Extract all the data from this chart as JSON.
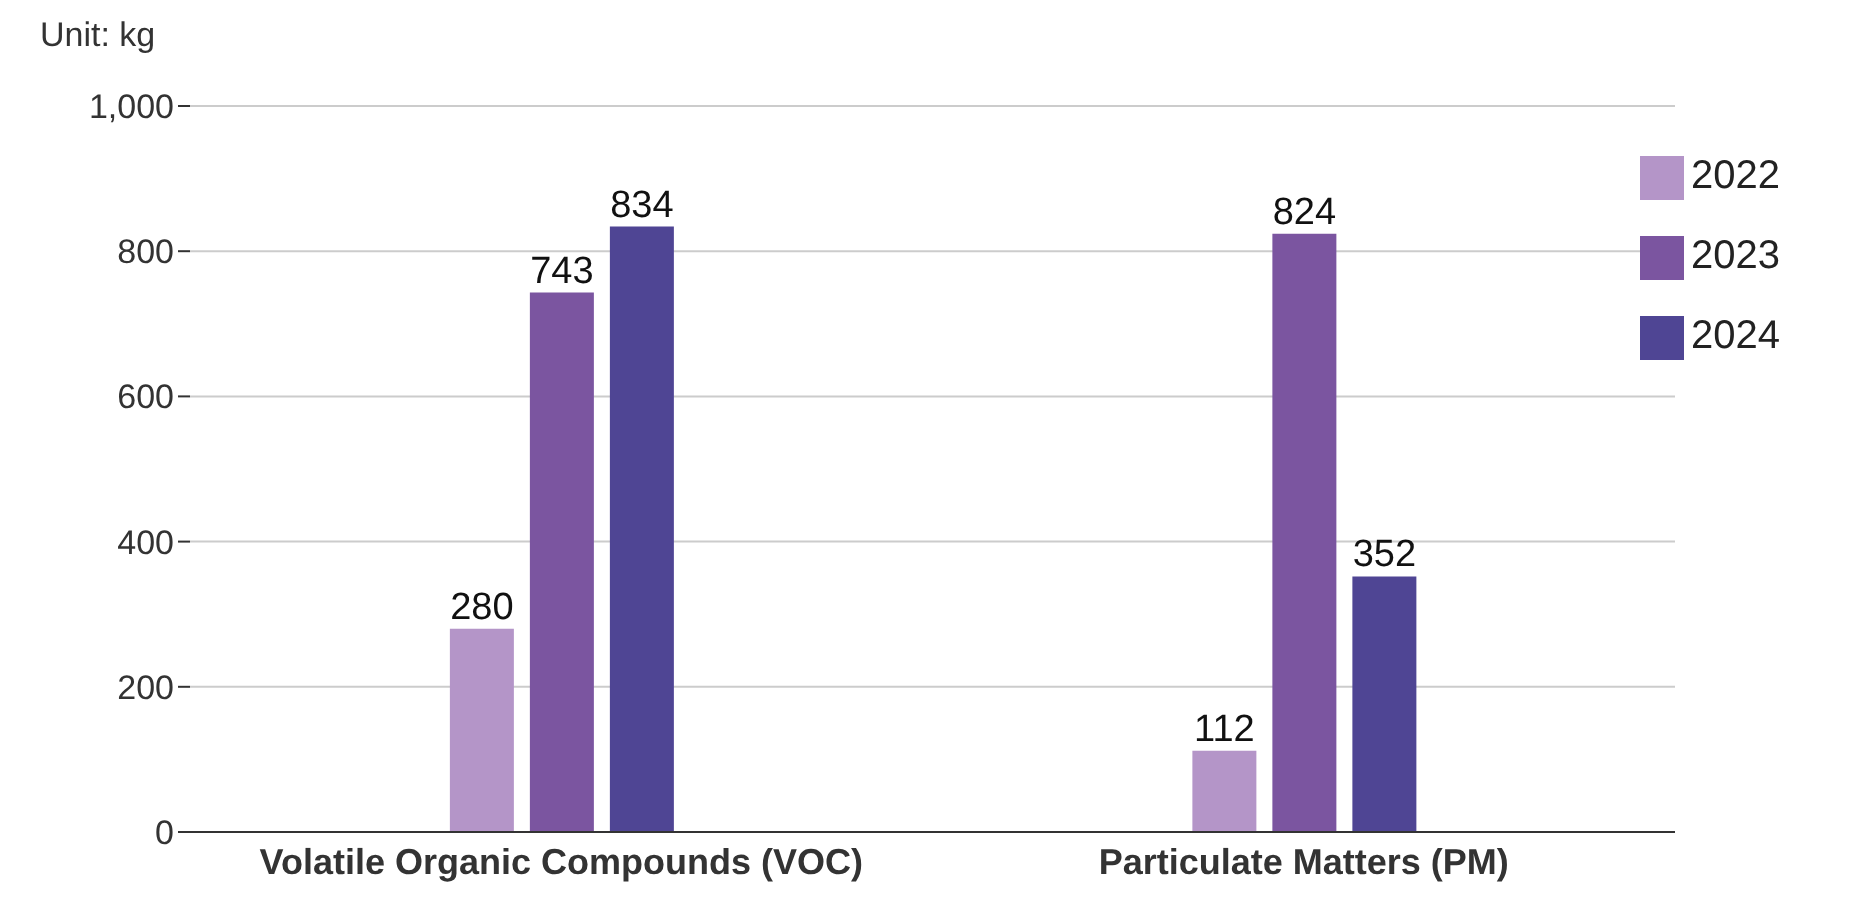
{
  "chart_data": {
    "type": "bar",
    "ylabel": "Unit: kg",
    "categories": [
      "Volatile Organic Compounds (VOC)",
      "Particulate Matters (PM)"
    ],
    "series": [
      {
        "name": "2022",
        "color": "#b495c8",
        "values": [
          280,
          112
        ]
      },
      {
        "name": "2023",
        "color": "#7b55a0",
        "values": [
          743,
          824
        ]
      },
      {
        "name": "2024",
        "color": "#4f4594",
        "values": [
          834,
          352
        ]
      }
    ],
    "ylim": [
      0,
      1000
    ],
    "yticks": [
      0,
      200,
      400,
      600,
      800,
      {
        "value": 1000,
        "label": "1,000"
      }
    ],
    "grid": "y",
    "legend": "top right",
    "data_labels": true
  }
}
